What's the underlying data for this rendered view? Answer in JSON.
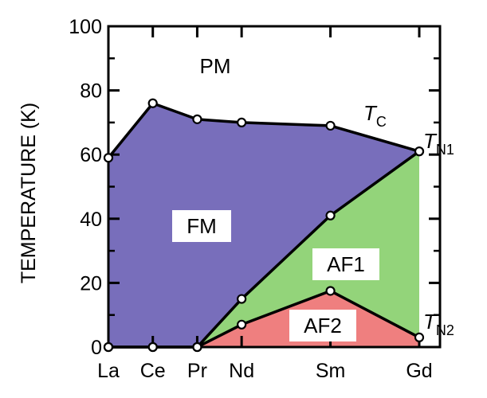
{
  "chart_data": {
    "type": "area",
    "categories": [
      "La",
      "Ce",
      "Pr",
      "Nd",
      "Sm",
      "Gd"
    ],
    "x_index": [
      0,
      1,
      2,
      3,
      5,
      7
    ],
    "ylabel": "TEMPERATURE (K)",
    "xlabel": "",
    "ylim": [
      0,
      100
    ],
    "yticks": [
      0,
      20,
      40,
      60,
      80,
      100
    ],
    "grid": false,
    "series": [
      {
        "name": "T_C",
        "values": [
          59,
          76,
          71,
          70,
          69,
          61
        ]
      },
      {
        "name": "T_N1",
        "values": [
          0,
          0,
          0,
          15,
          41,
          61
        ]
      },
      {
        "name": "T_N2",
        "values": [
          0,
          0,
          0,
          7,
          17.5,
          3
        ]
      }
    ],
    "regions": [
      {
        "label": "PM",
        "color": "#ffffff"
      },
      {
        "label": "FM",
        "color": "#786ebb"
      },
      {
        "label": "AF1",
        "color": "#93d47a"
      },
      {
        "label": "AF2",
        "color": "#ef7f7f"
      }
    ],
    "curve_labels": [
      {
        "main": "T",
        "sub": "C"
      },
      {
        "main": "T",
        "sub": "N1"
      },
      {
        "main": "T",
        "sub": "N2"
      }
    ]
  }
}
